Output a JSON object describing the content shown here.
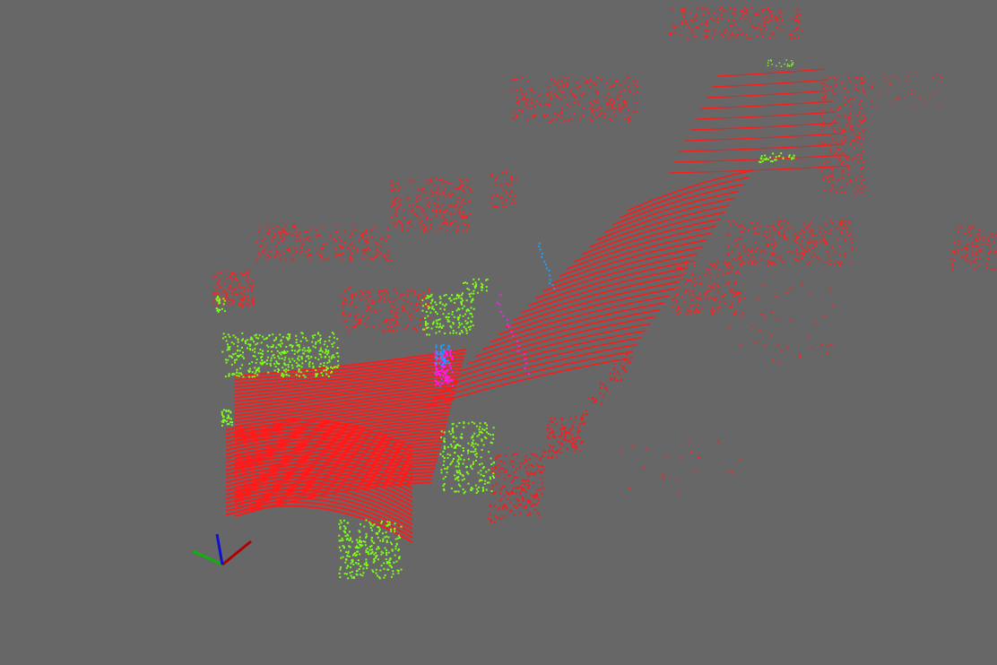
{
  "viewer": {
    "background": "#676767",
    "labels": {
      "ground": "#ff1a1a",
      "vehicle": "#7dff1a",
      "pedestrian": "#ff1aff",
      "cyclist": "#1aa0ff",
      "building": "#ff2020"
    },
    "axes_gizmo": {
      "x_color": "#b00000",
      "y_color": "#10b010",
      "z_color": "#1010d0",
      "icon": "xyz-axes-icon"
    }
  }
}
